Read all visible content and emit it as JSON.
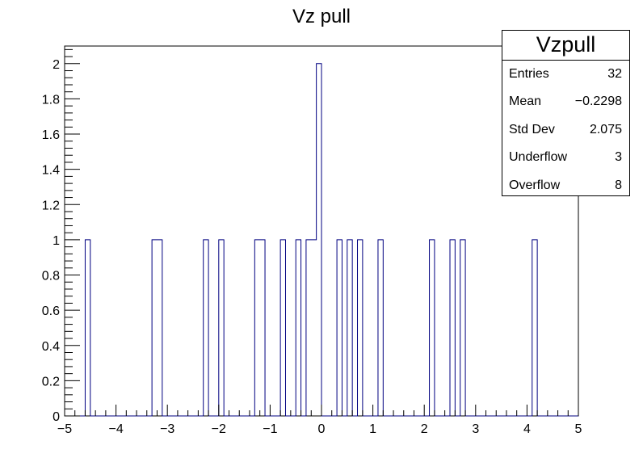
{
  "chart_data": {
    "type": "bar",
    "histogram": true,
    "title": "Vz pull",
    "xlabel": "",
    "ylabel": "",
    "xlim": [
      -5,
      5
    ],
    "ylim": [
      0,
      2.1
    ],
    "bin_count": 100,
    "line_color": "#000080",
    "x_ticks": [
      "−5",
      "−4",
      "−3",
      "−2",
      "−1",
      "0",
      "1",
      "2",
      "3",
      "4",
      "5"
    ],
    "y_ticks": [
      "0",
      "0.2",
      "0.4",
      "0.6",
      "0.8",
      "1",
      "1.2",
      "1.4",
      "1.6",
      "1.8",
      "2"
    ],
    "y_tick_values": [
      0,
      0.2,
      0.4,
      0.6,
      0.8,
      1,
      1.2,
      1.4,
      1.6,
      1.8,
      2
    ],
    "x_tick_values": [
      -5,
      -4,
      -3,
      -2,
      -1,
      0,
      1,
      2,
      3,
      4,
      5
    ],
    "bins": [
      {
        "x": -4.55,
        "value": 1
      },
      {
        "x": -3.25,
        "value": 1
      },
      {
        "x": -3.15,
        "value": 1
      },
      {
        "x": -2.25,
        "value": 1
      },
      {
        "x": -1.95,
        "value": 1
      },
      {
        "x": -1.25,
        "value": 1
      },
      {
        "x": -1.15,
        "value": 1
      },
      {
        "x": -0.75,
        "value": 1
      },
      {
        "x": -0.45,
        "value": 1
      },
      {
        "x": -0.25,
        "value": 1
      },
      {
        "x": -0.15,
        "value": 1
      },
      {
        "x": -0.05,
        "value": 2
      },
      {
        "x": 0.35,
        "value": 1
      },
      {
        "x": 0.55,
        "value": 1
      },
      {
        "x": 0.75,
        "value": 1
      },
      {
        "x": 1.15,
        "value": 1
      },
      {
        "x": 2.15,
        "value": 1
      },
      {
        "x": 2.55,
        "value": 1
      },
      {
        "x": 2.75,
        "value": 1
      },
      {
        "x": 4.15,
        "value": 1
      }
    ]
  },
  "stats": {
    "name": "Vzpull",
    "rows": [
      {
        "label": "Entries",
        "value": "32"
      },
      {
        "label": "Mean",
        "value": "−0.2298"
      },
      {
        "label": "Std Dev",
        "value": "2.075"
      },
      {
        "label": "Underflow",
        "value": "3"
      },
      {
        "label": "Overflow",
        "value": "8"
      }
    ]
  }
}
